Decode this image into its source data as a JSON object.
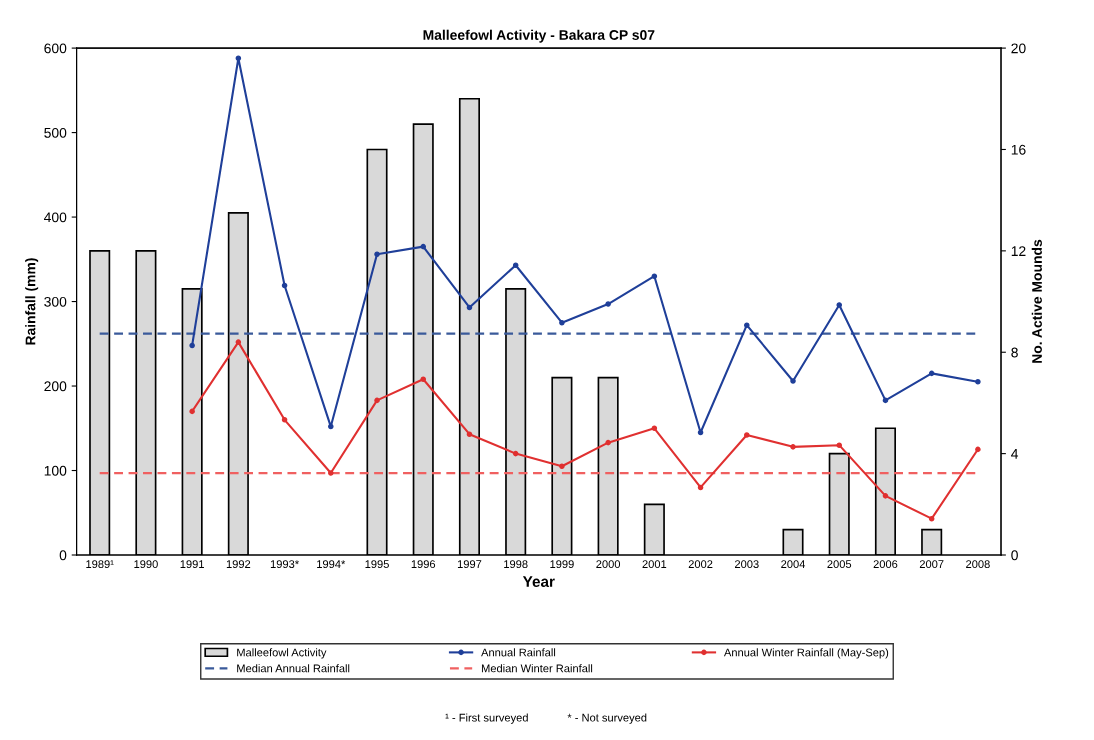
{
  "chart_data": {
    "type": "bar",
    "title": "Malleefowl Activity - Bakara CP s07",
    "xlabel": "Year",
    "ylabel": "Rainfall (mm)",
    "y2label": "No. Active Mounds",
    "categories": [
      "1989¹",
      "1990",
      "1991",
      "1992",
      "1993*",
      "1994*",
      "1995",
      "1996",
      "1997",
      "1998",
      "1999",
      "2000",
      "2001",
      "2002",
      "2003",
      "2004",
      "2005",
      "2006",
      "2007",
      "2008"
    ],
    "series": [
      {
        "name": "Malleefowl Activity",
        "axis": "y2",
        "color": "#d9d9d9",
        "values": [
          12,
          12,
          10.5,
          13.5,
          null,
          null,
          16,
          17,
          18,
          10.5,
          7,
          7,
          2,
          0,
          0,
          1,
          4,
          5,
          1,
          0
        ]
      },
      {
        "name": "Annual Rainfall",
        "type": "line",
        "color": "#1f3f99",
        "values": [
          null,
          null,
          248,
          588,
          319,
          152,
          356,
          365,
          293,
          343,
          275,
          297,
          330,
          145,
          272,
          206,
          296,
          183,
          215,
          205
        ]
      },
      {
        "name": "Annual Winter Rainfall (May-Sep)",
        "type": "line",
        "color": "#e03030",
        "values": [
          null,
          null,
          170,
          252,
          160,
          97,
          183,
          208,
          143,
          120,
          105,
          133,
          150,
          80,
          142,
          128,
          130,
          70,
          43,
          125
        ]
      }
    ],
    "ref_lines": [
      {
        "axis": "y",
        "value": 262,
        "label": "Median Annual Rainfall",
        "color": "#3a5a9a",
        "line_style": "dashed"
      },
      {
        "axis": "y",
        "value": 97,
        "label": "Median Winter Rainfall",
        "color": "#f06060",
        "line_style": "dashed"
      }
    ],
    "ylim": [
      0,
      600
    ],
    "yticks": [
      0,
      100,
      200,
      300,
      400,
      500,
      600
    ],
    "y2lim": [
      0,
      20
    ],
    "y2ticks": [
      0,
      4,
      8,
      12,
      16,
      20
    ],
    "marker": "circle",
    "line_style": "solid",
    "grid": false,
    "legend": "bottom",
    "annotations": [
      "¹ - First surveyed",
      "* - Not surveyed"
    ]
  }
}
